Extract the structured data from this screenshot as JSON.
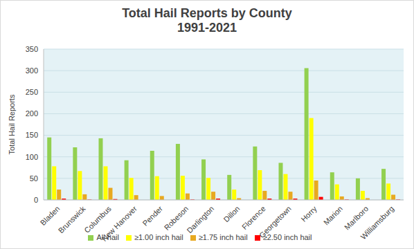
{
  "chart_data": {
    "type": "bar",
    "title": "Total Hail Reports by County",
    "subtitle": "1991-2021",
    "y_label": "Total Hail Reports",
    "categories": [
      "Bladen",
      "Brunswick",
      "Columbus",
      "New Hanover",
      "Pender",
      "Robeson",
      "Darlington",
      "Dillon",
      "Florence",
      "Georgetown",
      "Horry",
      "Marion",
      "Marlboro",
      "Williamsburg"
    ],
    "series": [
      {
        "name": "All hail",
        "color": "#92d050",
        "values": [
          145,
          122,
          143,
          92,
          114,
          130,
          94,
          58,
          124,
          86,
          306,
          64,
          50,
          72
        ]
      },
      {
        "name": "≥1.00 inch hail",
        "color": "#ffff00",
        "values": [
          78,
          67,
          78,
          51,
          55,
          56,
          51,
          24,
          69,
          60,
          190,
          36,
          21,
          38
        ]
      },
      {
        "name": "≥1.75 inch hail",
        "color": "#e8a920",
        "values": [
          24,
          13,
          28,
          11,
          9,
          15,
          19,
          4,
          21,
          19,
          45,
          8,
          4,
          12
        ]
      },
      {
        "name": "≥2.50 inch hail",
        "color": "#ff0000",
        "values": [
          3,
          1,
          2,
          0,
          0,
          1,
          3,
          0,
          3,
          3,
          7,
          1,
          0,
          1
        ]
      }
    ],
    "ylim": [
      0,
      350
    ],
    "yticks": [
      0,
      50,
      100,
      150,
      200,
      250,
      300,
      350
    ],
    "grid": true,
    "legend": "bottom"
  }
}
